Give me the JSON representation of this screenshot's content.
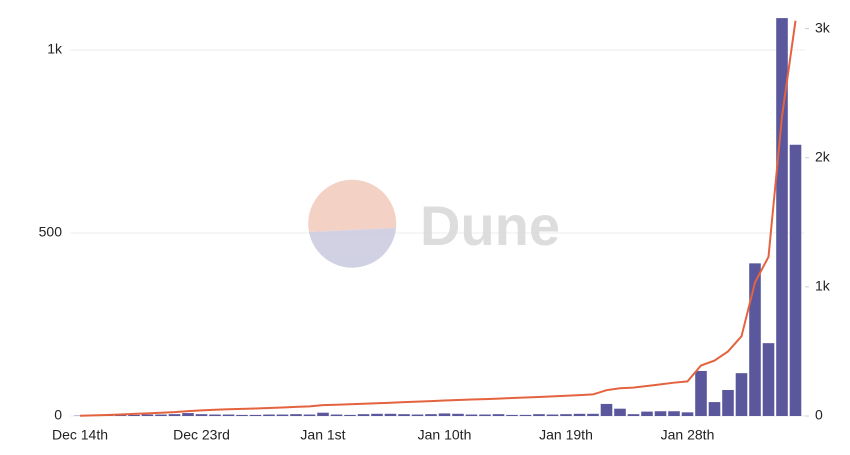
{
  "watermark": "Dune",
  "chart_data": {
    "type": "bar-line",
    "categories": [
      "Dec 14th",
      null,
      null,
      null,
      null,
      null,
      null,
      null,
      null,
      "Dec 23rd",
      null,
      null,
      null,
      null,
      null,
      null,
      null,
      null,
      "Jan 1st",
      null,
      null,
      null,
      null,
      null,
      null,
      null,
      null,
      "Jan 10th",
      null,
      null,
      null,
      null,
      null,
      null,
      null,
      null,
      "Jan 19th",
      null,
      null,
      null,
      null,
      null,
      null,
      null,
      null,
      "Jan 28th",
      null,
      null,
      null,
      null,
      null,
      null,
      null,
      null
    ],
    "series": [
      {
        "type": "bar",
        "axis": "y",
        "color": "#5b579c",
        "values": [
          1,
          2,
          2,
          3,
          3,
          4,
          4,
          5,
          8,
          5,
          4,
          4,
          3,
          3,
          4,
          4,
          5,
          4,
          9,
          4,
          3,
          5,
          6,
          6,
          5,
          4,
          5,
          7,
          6,
          4,
          4,
          5,
          3,
          3,
          5,
          4,
          5,
          6,
          6,
          33,
          20,
          5,
          12,
          13,
          13,
          10,
          123,
          38,
          71,
          117,
          417,
          199,
          1087,
          741
        ]
      },
      {
        "type": "line",
        "axis": "y2",
        "color": "#e4633f",
        "values": [
          2,
          5,
          8,
          12,
          16,
          20,
          25,
          30,
          38,
          44,
          48,
          52,
          55,
          58,
          62,
          66,
          71,
          75,
          84,
          87,
          91,
          95,
          99,
          103,
          107,
          111,
          115,
          120,
          124,
          128,
          131,
          135,
          139,
          143,
          147,
          152,
          157,
          162,
          167,
          200,
          215,
          220,
          232,
          245,
          258,
          268,
          391,
          429,
          500,
          617,
          1034,
          1233,
          2320,
          3061
        ]
      }
    ],
    "ylim": [
      0,
      1090
    ],
    "yticks": [
      0,
      500,
      {
        "value": 1000,
        "label": "1k"
      }
    ],
    "y2lim": [
      0,
      3090
    ],
    "y2ticks": [
      0,
      {
        "value": 1000,
        "label": "1k"
      },
      {
        "value": 2000,
        "label": "2k"
      },
      {
        "value": 3000,
        "label": "3k"
      }
    ],
    "grid": true
  }
}
